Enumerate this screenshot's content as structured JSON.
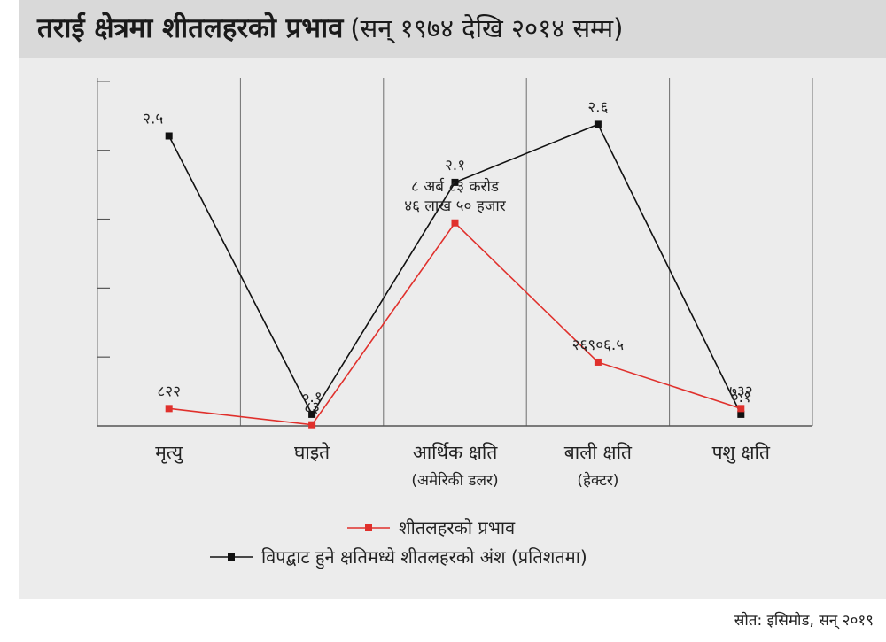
{
  "title": "तराई क्षेत्रमा शीतलहरको प्रभाव",
  "subtitle": "(सन् १९७४ देखि २०१४ सम्म)",
  "source": "स्रोत: इसिमोड, सन् २०१९",
  "chart_data": {
    "type": "line",
    "categories": [
      {
        "label": "मृत्यु",
        "sublabel": ""
      },
      {
        "label": "घाइते",
        "sublabel": ""
      },
      {
        "label": "आर्थिक क्षति",
        "sublabel": "(अमेरिकी डलर)"
      },
      {
        "label": "बाली क्षति",
        "sublabel": "(हेक्टर)"
      },
      {
        "label": "पशु क्षति",
        "sublabel": ""
      }
    ],
    "series": [
      {
        "name": "विपद्बाट हुने क्षतिमध्ये शीतलहरको अंश (प्रतिशतमा)",
        "color": "#111111",
        "values": [
          2.5,
          0.1,
          2.1,
          2.6,
          0.1
        ],
        "labels": [
          "२.५",
          "०.१",
          "२.१",
          "२.६",
          "०.१"
        ]
      },
      {
        "name": "शीतलहरको प्रभाव",
        "color": "#e0302c",
        "values": [
          0.15,
          0.01,
          1.75,
          0.55,
          0.15
        ],
        "labels": [
          "८२२",
          "८३",
          "८ अर्ब ८३ करोड\n४६ लाख ५० हजार",
          "२६९०६.५",
          "७३२"
        ]
      }
    ],
    "grid": true,
    "legend_position": "bottom-center"
  }
}
